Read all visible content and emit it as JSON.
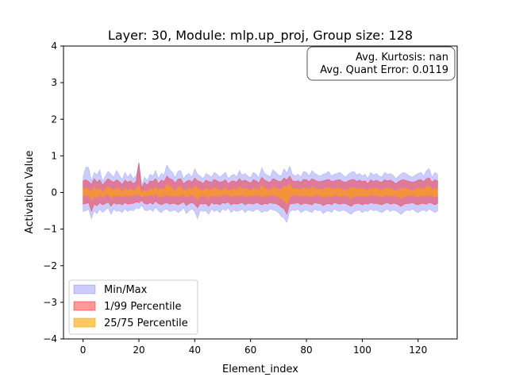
{
  "chart_data": {
    "type": "area",
    "title": "Layer: 30, Module: mlp.up_proj,  Group size: 128",
    "xlabel": "Element_index",
    "ylabel": "Activation Value",
    "xlim": [
      -7,
      134
    ],
    "ylim": [
      -4,
      4
    ],
    "xticks": [
      0,
      20,
      40,
      60,
      80,
      100,
      120
    ],
    "yticks": [
      -4,
      -3,
      -2,
      -1,
      0,
      1,
      2,
      3,
      4
    ],
    "grid": false,
    "legend_position": "lower-left",
    "annotation_lines": [
      "Avg. Kurtosis: nan",
      "Avg. Quant Error: 0.0119"
    ],
    "colors": {
      "minmax": "#0000ff",
      "p1_99": "#ff0000",
      "p25_75": "#ffa500"
    },
    "series": [
      {
        "name": "Min/Max",
        "upper": [
          0.42,
          0.7,
          0.68,
          0.32,
          0.55,
          0.48,
          0.62,
          0.3,
          0.45,
          0.58,
          0.5,
          0.42,
          0.6,
          0.48,
          0.35,
          0.55,
          0.42,
          0.52,
          0.38,
          0.46,
          0.82,
          0.2,
          0.42,
          0.32,
          0.5,
          0.45,
          0.6,
          0.38,
          0.52,
          0.48,
          0.75,
          0.62,
          0.55,
          0.4,
          0.58,
          0.6,
          0.38,
          0.48,
          0.52,
          0.42,
          0.65,
          0.5,
          0.45,
          0.38,
          0.52,
          0.48,
          0.42,
          0.55,
          0.5,
          0.42,
          0.48,
          0.55,
          0.38,
          0.45,
          0.5,
          0.42,
          0.6,
          0.48,
          0.52,
          0.45,
          0.4,
          0.55,
          0.5,
          0.4,
          0.68,
          0.52,
          0.48,
          0.42,
          0.62,
          0.55,
          0.48,
          0.45,
          0.65,
          0.52,
          0.72,
          0.5,
          0.45,
          0.5,
          0.42,
          0.58,
          0.55,
          0.45,
          0.6,
          0.52,
          0.48,
          0.45,
          0.5,
          0.52,
          0.58,
          0.45,
          0.5,
          0.52,
          0.55,
          0.48,
          0.42,
          0.5,
          0.55,
          0.58,
          0.48,
          0.52,
          0.45,
          0.5,
          0.38,
          0.55,
          0.48,
          0.52,
          0.45,
          0.42,
          0.55,
          0.5,
          0.52,
          0.48,
          0.38,
          0.45,
          0.52,
          0.55,
          0.5,
          0.45,
          0.42,
          0.48,
          0.52,
          0.55,
          0.45,
          0.6,
          0.65,
          0.42,
          0.55,
          0.5
        ],
        "lower": [
          -0.52,
          -0.5,
          -0.45,
          -0.72,
          -0.5,
          -0.58,
          -0.45,
          -0.55,
          -0.48,
          -0.42,
          -0.6,
          -0.45,
          -0.52,
          -0.5,
          -0.55,
          -0.45,
          -0.52,
          -0.48,
          -0.5,
          -0.42,
          -0.45,
          -0.35,
          -0.48,
          -0.5,
          -0.45,
          -0.52,
          -0.4,
          -0.5,
          -0.55,
          -0.48,
          -0.45,
          -0.52,
          -0.5,
          -0.48,
          -0.55,
          -0.5,
          -0.42,
          -0.58,
          -0.5,
          -0.45,
          -0.52,
          -0.72,
          -0.48,
          -0.52,
          -0.5,
          -0.6,
          -0.45,
          -0.52,
          -0.48,
          -0.55,
          -0.45,
          -0.5,
          -0.42,
          -0.55,
          -0.48,
          -0.52,
          -0.5,
          -0.45,
          -0.55,
          -0.48,
          -0.5,
          -0.52,
          -0.45,
          -0.48,
          -0.55,
          -0.5,
          -0.52,
          -0.45,
          -0.48,
          -0.5,
          -0.55,
          -0.65,
          -0.7,
          -0.82,
          -0.52,
          -0.48,
          -0.5,
          -0.45,
          -0.55,
          -0.5,
          -0.48,
          -0.52,
          -0.55,
          -0.45,
          -0.5,
          -0.48,
          -0.58,
          -0.52,
          -0.5,
          -0.55,
          -0.45,
          -0.5,
          -0.52,
          -0.48,
          -0.5,
          -0.55,
          -0.6,
          -0.52,
          -0.5,
          -0.48,
          -0.55,
          -0.5,
          -0.52,
          -0.45,
          -0.5,
          -0.48,
          -0.52,
          -0.55,
          -0.5,
          -0.45,
          -0.52,
          -0.48,
          -0.5,
          -0.55,
          -0.6,
          -0.52,
          -0.48,
          -0.5,
          -0.45,
          -0.52,
          -0.55,
          -0.5,
          -0.48,
          -0.52,
          -0.45,
          -0.5,
          -0.55,
          -0.5
        ]
      },
      {
        "name": "1/99 Percentile",
        "upper": [
          0.32,
          0.35,
          0.3,
          0.22,
          0.38,
          0.28,
          0.35,
          0.2,
          0.3,
          0.38,
          0.32,
          0.28,
          0.35,
          0.3,
          0.22,
          0.34,
          0.28,
          0.32,
          0.24,
          0.3,
          0.82,
          0.12,
          0.28,
          0.2,
          0.32,
          0.3,
          0.38,
          0.24,
          0.34,
          0.3,
          0.45,
          0.38,
          0.35,
          0.26,
          0.36,
          0.38,
          0.24,
          0.3,
          0.34,
          0.28,
          0.4,
          0.32,
          0.3,
          0.24,
          0.34,
          0.3,
          0.28,
          0.36,
          0.32,
          0.28,
          0.3,
          0.35,
          0.24,
          0.3,
          0.32,
          0.28,
          0.38,
          0.3,
          0.34,
          0.3,
          0.26,
          0.35,
          0.32,
          0.26,
          0.42,
          0.34,
          0.3,
          0.28,
          0.38,
          0.35,
          0.3,
          0.3,
          0.4,
          0.34,
          0.45,
          0.32,
          0.3,
          0.32,
          0.28,
          0.36,
          0.35,
          0.3,
          0.38,
          0.34,
          0.3,
          0.3,
          0.32,
          0.34,
          0.36,
          0.3,
          0.32,
          0.34,
          0.35,
          0.3,
          0.28,
          0.32,
          0.35,
          0.36,
          0.3,
          0.34,
          0.3,
          0.32,
          0.24,
          0.35,
          0.3,
          0.34,
          0.3,
          0.28,
          0.35,
          0.32,
          0.34,
          0.3,
          0.24,
          0.3,
          0.34,
          0.35,
          0.32,
          0.3,
          0.28,
          0.3,
          0.34,
          0.35,
          0.3,
          0.38,
          0.4,
          0.28,
          0.35,
          0.32
        ],
        "lower": [
          -0.32,
          -0.3,
          -0.28,
          -0.52,
          -0.32,
          -0.36,
          -0.28,
          -0.34,
          -0.3,
          -0.26,
          -0.38,
          -0.28,
          -0.32,
          -0.3,
          -0.34,
          -0.28,
          -0.32,
          -0.3,
          -0.3,
          -0.26,
          -0.28,
          -0.22,
          -0.3,
          -0.32,
          -0.28,
          -0.32,
          -0.24,
          -0.3,
          -0.34,
          -0.3,
          -0.28,
          -0.32,
          -0.3,
          -0.3,
          -0.34,
          -0.3,
          -0.26,
          -0.36,
          -0.3,
          -0.28,
          -0.32,
          -0.42,
          -0.3,
          -0.32,
          -0.3,
          -0.38,
          -0.28,
          -0.32,
          -0.3,
          -0.34,
          -0.28,
          -0.3,
          -0.26,
          -0.34,
          -0.3,
          -0.32,
          -0.3,
          -0.28,
          -0.34,
          -0.3,
          -0.3,
          -0.32,
          -0.28,
          -0.3,
          -0.34,
          -0.3,
          -0.32,
          -0.28,
          -0.3,
          -0.3,
          -0.34,
          -0.4,
          -0.45,
          -0.6,
          -0.32,
          -0.3,
          -0.3,
          -0.28,
          -0.34,
          -0.3,
          -0.3,
          -0.32,
          -0.34,
          -0.28,
          -0.3,
          -0.3,
          -0.36,
          -0.32,
          -0.3,
          -0.34,
          -0.28,
          -0.3,
          -0.32,
          -0.3,
          -0.3,
          -0.34,
          -0.38,
          -0.32,
          -0.3,
          -0.3,
          -0.34,
          -0.3,
          -0.32,
          -0.28,
          -0.3,
          -0.3,
          -0.32,
          -0.34,
          -0.3,
          -0.28,
          -0.32,
          -0.3,
          -0.3,
          -0.34,
          -0.38,
          -0.32,
          -0.3,
          -0.3,
          -0.28,
          -0.32,
          -0.34,
          -0.3,
          -0.3,
          -0.32,
          -0.28,
          -0.3,
          -0.34,
          -0.3
        ]
      },
      {
        "name": "25/75 Percentile",
        "upper": [
          0.1,
          0.12,
          0.08,
          0.02,
          0.14,
          0.06,
          0.12,
          0.0,
          0.1,
          0.16,
          0.1,
          0.06,
          0.12,
          0.08,
          0.02,
          0.12,
          0.06,
          0.1,
          0.04,
          0.08,
          0.2,
          -0.02,
          0.06,
          0.02,
          0.1,
          0.08,
          0.14,
          0.04,
          0.12,
          0.08,
          0.22,
          0.16,
          0.12,
          0.04,
          0.14,
          0.16,
          0.04,
          0.08,
          0.12,
          0.06,
          0.18,
          0.1,
          0.08,
          0.04,
          0.12,
          0.08,
          0.06,
          0.14,
          0.1,
          0.06,
          0.08,
          0.12,
          0.04,
          0.08,
          0.1,
          0.06,
          0.16,
          0.08,
          0.12,
          0.08,
          0.04,
          0.12,
          0.1,
          0.04,
          0.2,
          0.12,
          0.08,
          0.06,
          0.16,
          0.12,
          0.08,
          0.08,
          0.18,
          0.12,
          0.22,
          0.1,
          0.08,
          0.1,
          0.06,
          0.14,
          0.12,
          0.08,
          0.16,
          0.12,
          0.08,
          0.08,
          0.1,
          0.12,
          0.14,
          0.08,
          0.1,
          0.12,
          0.12,
          0.08,
          0.06,
          0.1,
          0.12,
          0.14,
          0.08,
          0.12,
          0.08,
          0.1,
          0.04,
          0.12,
          0.08,
          0.12,
          0.08,
          0.06,
          0.12,
          0.1,
          0.12,
          0.08,
          0.04,
          0.08,
          0.12,
          0.12,
          0.1,
          0.08,
          0.06,
          0.08,
          0.12,
          0.12,
          0.08,
          0.16,
          0.18,
          0.06,
          0.12,
          0.1
        ],
        "lower": [
          -0.1,
          -0.08,
          -0.06,
          -0.22,
          -0.1,
          -0.14,
          -0.06,
          -0.12,
          -0.08,
          -0.04,
          -0.16,
          -0.06,
          -0.1,
          -0.08,
          -0.12,
          -0.06,
          -0.1,
          -0.08,
          -0.08,
          -0.04,
          -0.06,
          -0.12,
          -0.08,
          -0.1,
          -0.06,
          -0.1,
          -0.02,
          -0.08,
          -0.12,
          -0.08,
          -0.06,
          -0.1,
          -0.08,
          -0.08,
          -0.12,
          -0.08,
          -0.04,
          -0.14,
          -0.08,
          -0.06,
          -0.1,
          -0.2,
          -0.08,
          -0.1,
          -0.08,
          -0.16,
          -0.06,
          -0.1,
          -0.08,
          -0.12,
          -0.06,
          -0.08,
          -0.04,
          -0.12,
          -0.08,
          -0.1,
          -0.08,
          -0.06,
          -0.12,
          -0.08,
          -0.08,
          -0.1,
          -0.06,
          -0.08,
          -0.12,
          -0.08,
          -0.1,
          -0.06,
          -0.08,
          -0.08,
          -0.12,
          -0.18,
          -0.22,
          -0.3,
          -0.1,
          -0.08,
          -0.08,
          -0.06,
          -0.12,
          -0.08,
          -0.08,
          -0.1,
          -0.12,
          -0.06,
          -0.08,
          -0.08,
          -0.14,
          -0.1,
          -0.08,
          -0.12,
          -0.06,
          -0.08,
          -0.1,
          -0.08,
          -0.08,
          -0.12,
          -0.16,
          -0.1,
          -0.08,
          -0.08,
          -0.12,
          -0.08,
          -0.1,
          -0.06,
          -0.08,
          -0.08,
          -0.1,
          -0.12,
          -0.08,
          -0.06,
          -0.1,
          -0.08,
          -0.08,
          -0.12,
          -0.16,
          -0.1,
          -0.08,
          -0.08,
          -0.06,
          -0.1,
          -0.12,
          -0.08,
          -0.08,
          -0.1,
          -0.06,
          -0.08,
          -0.12,
          -0.08
        ]
      }
    ]
  }
}
